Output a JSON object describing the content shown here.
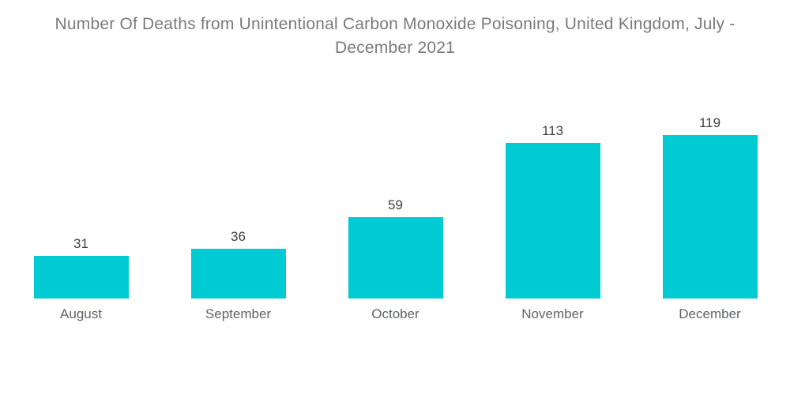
{
  "header": {
    "title_line1": "Number Of Deaths from Unintentional Carbon Monoxide Poisoning, United Kingdom, July -",
    "title_line2": "December 2021"
  },
  "colors": {
    "bar": "#00CAD2",
    "value_label": "#414141",
    "category_label": "#5F6368",
    "title": "#7A7A7A",
    "background": "#FFFFFF"
  },
  "chart_data": {
    "type": "bar",
    "title": "Number Of Deaths from Unintentional Carbon Monoxide Poisoning, United Kingdom, July - December 2021",
    "categories": [
      "August",
      "September",
      "October",
      "November",
      "December"
    ],
    "values": [
      31,
      36,
      59,
      113,
      119
    ],
    "xlabel": "",
    "ylabel": "",
    "ylim": [
      0,
      128
    ],
    "grid": false,
    "legend": null,
    "value_labels_shown": true,
    "axis_lines_shown": false
  }
}
